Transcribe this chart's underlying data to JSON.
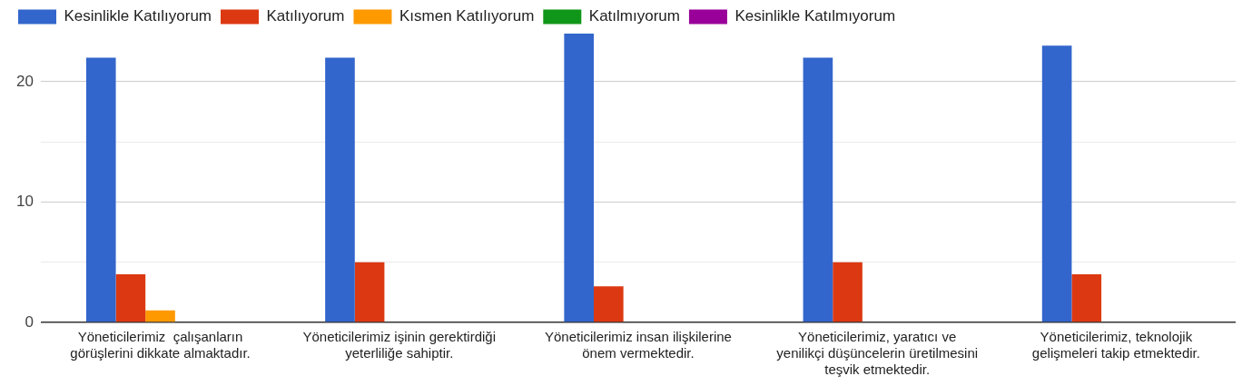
{
  "chart_data": {
    "type": "bar",
    "categories": [
      "Yöneticilerimiz  çalışanların görüşlerini dikkate almaktadır.",
      "Yöneticilerimiz işinin gerektirdiği yeterliliğe sahiptir.",
      "Yöneticilerimiz insan ilişkilerine önem vermektedir.",
      "Yöneticilerimiz, yaratıcı ve yenilikçi düşüncelerin üretilmesini teşvik etmektedir.",
      "Yöneticilerimiz, teknolojik gelişmeleri takip etmektedir."
    ],
    "series": [
      {
        "name": "Kesinlikle Katılıyorum",
        "color": "#3366cc",
        "values": [
          22,
          22,
          24,
          22,
          23
        ]
      },
      {
        "name": "Katılıyorum",
        "color": "#dc3912",
        "values": [
          4,
          5,
          3,
          5,
          4
        ]
      },
      {
        "name": "Kısmen Katılıyorum",
        "color": "#ff9900",
        "values": [
          1,
          0,
          0,
          0,
          0
        ]
      },
      {
        "name": "Katılmıyorum",
        "color": "#109618",
        "values": [
          0,
          0,
          0,
          0,
          0
        ]
      },
      {
        "name": "Kesinlikle Katılmıyorum",
        "color": "#990099",
        "values": [
          0,
          0,
          0,
          0,
          0
        ]
      }
    ],
    "ylim": [
      0,
      24
    ],
    "yticks": [
      0,
      {
        "value": 5,
        "label": null
      },
      10,
      {
        "value": 15,
        "label": null
      },
      20
    ],
    "grid": "y",
    "legend": "top left"
  }
}
